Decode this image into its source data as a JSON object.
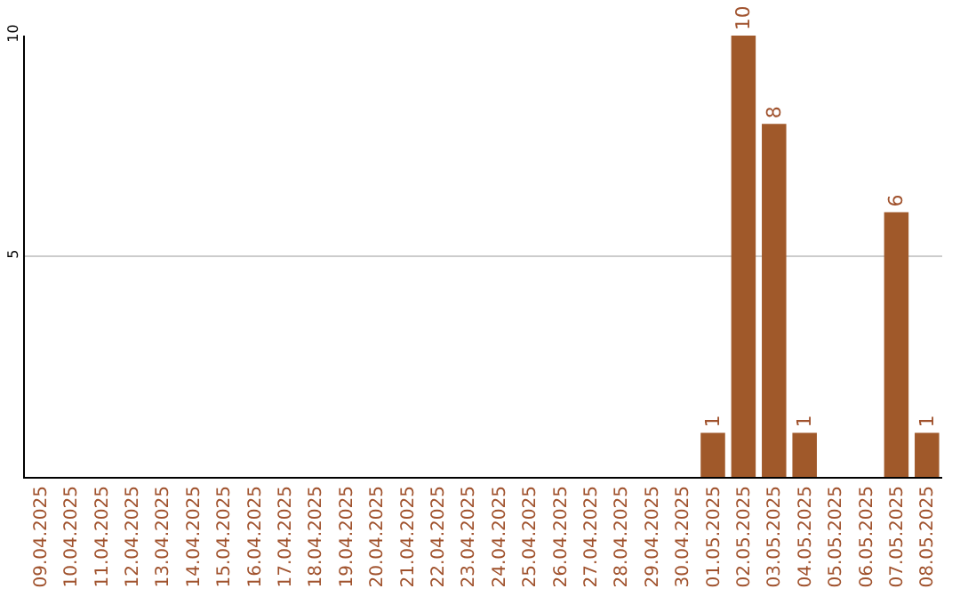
{
  "chart_data": {
    "type": "bar",
    "categories": [
      "09.04.2025",
      "10.04.2025",
      "11.04.2025",
      "12.04.2025",
      "13.04.2025",
      "14.04.2025",
      "15.04.2025",
      "16.04.2025",
      "17.04.2025",
      "18.04.2025",
      "19.04.2025",
      "20.04.2025",
      "21.04.2025",
      "22.04.2025",
      "23.04.2025",
      "24.04.2025",
      "25.04.2025",
      "26.04.2025",
      "27.04.2025",
      "28.04.2025",
      "29.04.2025",
      "30.04.2025",
      "01.05.2025",
      "02.05.2025",
      "03.05.2025",
      "04.05.2025",
      "05.05.2025",
      "06.05.2025",
      "07.05.2025",
      "08.05.2025"
    ],
    "values": [
      0,
      0,
      0,
      0,
      0,
      0,
      0,
      0,
      0,
      0,
      0,
      0,
      0,
      0,
      0,
      0,
      0,
      0,
      0,
      0,
      0,
      0,
      1,
      10,
      8,
      1,
      0,
      0,
      6,
      1
    ],
    "value_labels": [
      null,
      null,
      null,
      null,
      null,
      null,
      null,
      null,
      null,
      null,
      null,
      null,
      null,
      null,
      null,
      null,
      null,
      null,
      null,
      null,
      null,
      null,
      "1",
      "10",
      "8",
      "1",
      null,
      null,
      "6",
      "1"
    ],
    "color": "#a0592a",
    "ylim": [
      0,
      10
    ],
    "yticks": [
      5,
      10
    ],
    "grid": "y"
  }
}
